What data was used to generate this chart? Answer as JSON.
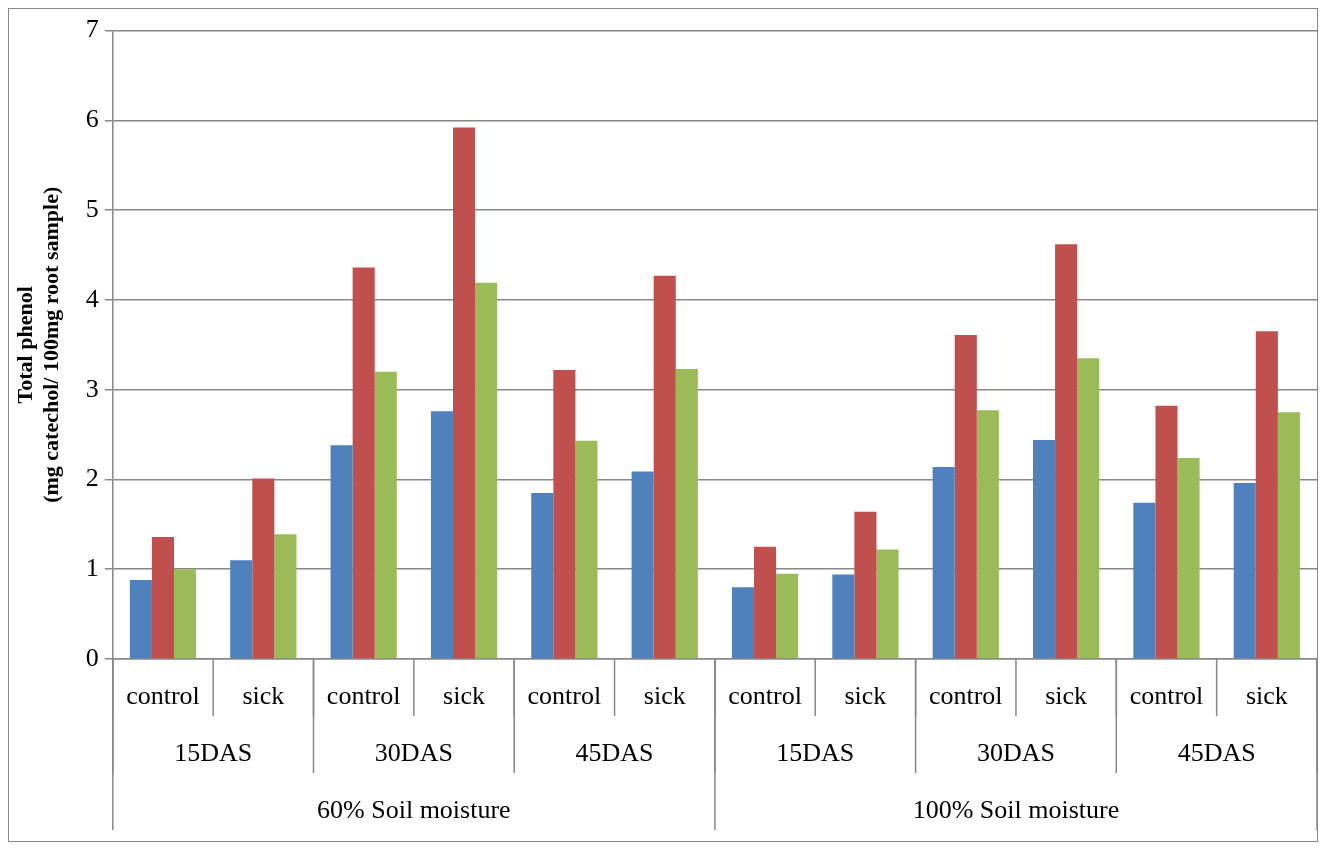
{
  "chart_data": {
    "type": "bar",
    "ylabel": "Total phenol\n(mg catechol/ 100mg root sample)",
    "categories": [
      "control",
      "sick",
      "control",
      "sick",
      "control",
      "sick",
      "control",
      "sick",
      "control",
      "sick",
      "control",
      "sick"
    ],
    "series": [
      {
        "color": "#4f81bd",
        "values": [
          0.88,
          1.1,
          2.38,
          2.76,
          1.85,
          2.09,
          0.8,
          0.94,
          2.14,
          2.44,
          1.74,
          1.96
        ]
      },
      {
        "color": "#c0504d",
        "values": [
          1.36,
          2.01,
          4.36,
          5.92,
          3.22,
          4.27,
          1.25,
          1.64,
          3.61,
          4.62,
          2.82,
          3.65
        ]
      },
      {
        "color": "#9bbb59",
        "values": [
          1.0,
          1.39,
          3.2,
          4.19,
          2.43,
          3.23,
          0.95,
          1.22,
          2.77,
          3.35,
          2.24,
          2.75
        ]
      }
    ],
    "annotations": [
      "15DAS",
      "30DAS",
      "45DAS",
      "15DAS",
      "30DAS",
      "45DAS",
      "60% Soil moisture",
      "100% Soil moisture"
    ],
    "ylim": [
      0,
      7
    ],
    "yticks": [
      0,
      1,
      2,
      3,
      4,
      5,
      6,
      7
    ],
    "grid": "y",
    "legend": false
  }
}
